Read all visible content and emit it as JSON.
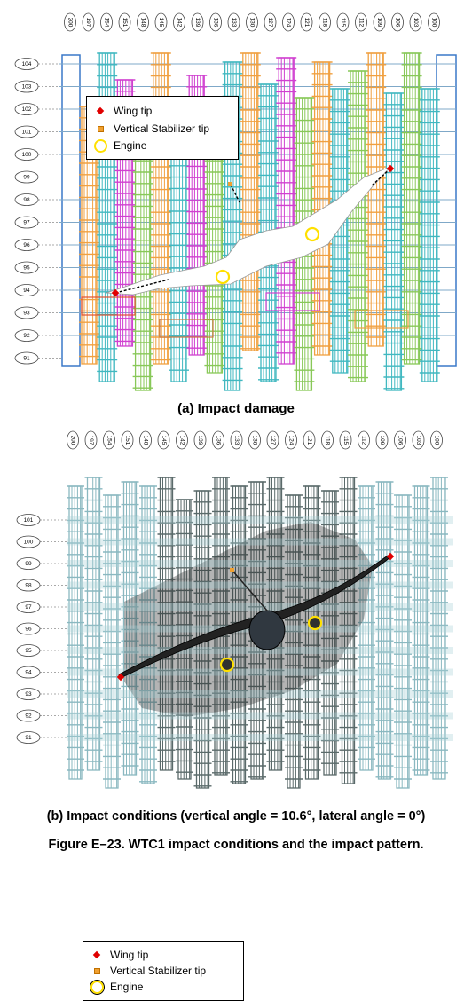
{
  "panel_a": {
    "column_labels": [
      "200",
      "197",
      "154",
      "151",
      "148",
      "145",
      "142",
      "139",
      "136",
      "133",
      "130",
      "127",
      "124",
      "121",
      "118",
      "115",
      "112",
      "109",
      "106",
      "103",
      "100"
    ],
    "floor_labels": [
      "104",
      "103",
      "102",
      "101",
      "100",
      "99",
      "98",
      "97",
      "96",
      "95",
      "94",
      "93",
      "92",
      "91"
    ],
    "legend": {
      "wing_tip": "Wing tip",
      "stabilizer": "Vertical Stabilizer tip",
      "engine": "Engine"
    },
    "caption": "(a) Impact damage"
  },
  "panel_b": {
    "column_labels": [
      "200",
      "197",
      "154",
      "151",
      "148",
      "145",
      "142",
      "139",
      "136",
      "133",
      "130",
      "127",
      "124",
      "121",
      "118",
      "115",
      "112",
      "109",
      "106",
      "103",
      "100"
    ],
    "floor_labels": [
      "101",
      "100",
      "99",
      "98",
      "97",
      "96",
      "95",
      "94",
      "93",
      "92",
      "91"
    ],
    "legend": {
      "wing_tip": "Wing tip",
      "stabilizer": "Vertical Stabilizer tip",
      "engine": "Engine"
    },
    "caption": "(b) Impact conditions (vertical angle = 10.6°, lateral angle = 0°)"
  },
  "figure_caption": "Figure E–23.  WTC1 impact conditions and the impact pattern.",
  "colors": {
    "blue": "#3a78c8",
    "orange": "#f0a040",
    "teal": "#40b8c0",
    "magenta": "#d040d0",
    "green": "#88c858",
    "brown": "#c87840",
    "red": "#e04020",
    "light_cyan": "#a8d4d8",
    "dark_gray": "#404040",
    "wing_tip": "#e00000",
    "engine": "#ffe000"
  }
}
